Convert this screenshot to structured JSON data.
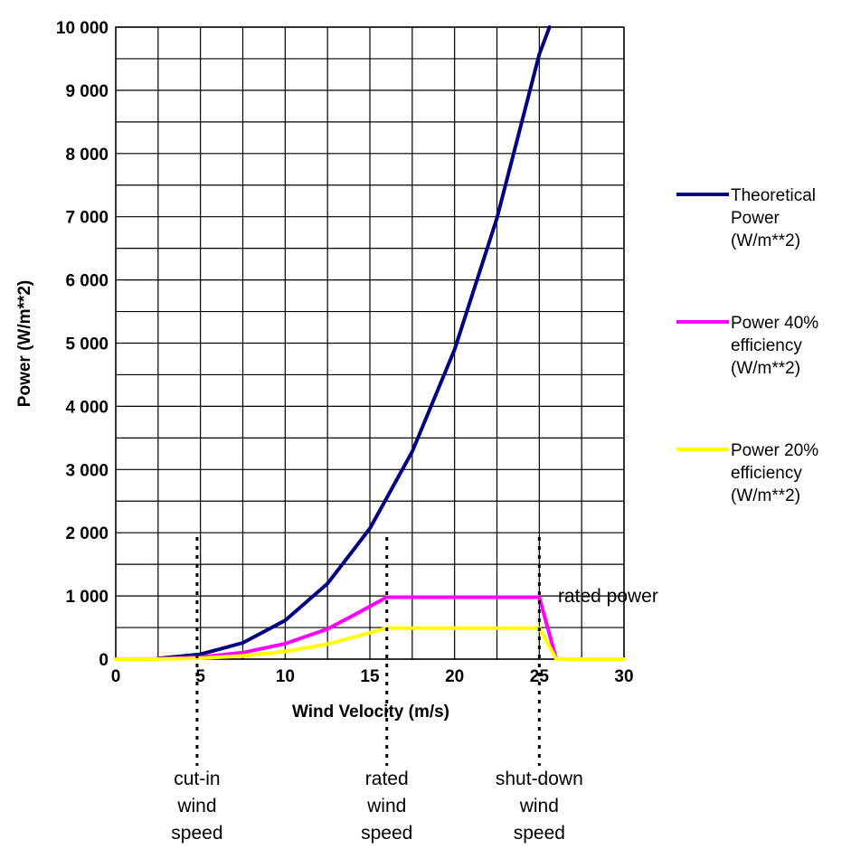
{
  "chart_data": {
    "type": "line",
    "xlabel": "Wind Velocity (m/s)",
    "ylabel": "Power (W/m**2)",
    "xlim": [
      0,
      30
    ],
    "ylim": [
      0,
      10000
    ],
    "x_ticks": [
      "0",
      "5",
      "10",
      "15",
      "20",
      "25",
      "30"
    ],
    "y_ticks": [
      "0",
      "1 000",
      "2 000",
      "3 000",
      "4 000",
      "5 000",
      "6 000",
      "7 000",
      "8 000",
      "9 000",
      "10 000"
    ],
    "grid": true,
    "legend_position": "right",
    "series": [
      {
        "name": "Theoretical Power (W/m**2)",
        "name_lines": [
          "Theoretical",
          "Power",
          "(W/m**2)"
        ],
        "color": "#000080",
        "x": [
          2.5,
          5,
          7.5,
          10,
          12.5,
          15,
          17.5,
          20,
          22.5,
          25,
          25.6
        ],
        "y": [
          10,
          77,
          258,
          612,
          1196,
          2067,
          3283,
          4900,
          6977,
          9570,
          10000
        ]
      },
      {
        "name": "Power 40% efficiency (W/m**2)",
        "name_lines": [
          "Power 40%",
          "efficiency",
          "(W/m**2)"
        ],
        "color": "#ff00ff",
        "x": [
          0,
          2.5,
          5,
          7.5,
          10,
          12.5,
          14,
          16,
          17.5,
          20,
          22.5,
          25,
          26,
          27.5,
          30
        ],
        "y": [
          0,
          4,
          31,
          103,
          245,
          478,
          690,
          980,
          980,
          980,
          980,
          980,
          0,
          0,
          0
        ]
      },
      {
        "name": "Power 20% efficiency (W/m**2)",
        "name_lines": [
          "Power 20%",
          "efficiency",
          "(W/m**2)"
        ],
        "color": "#ffff00",
        "x": [
          0,
          2.5,
          5,
          7.5,
          10,
          12.5,
          14,
          16,
          17.5,
          20,
          22.5,
          25,
          26,
          27.5,
          30
        ],
        "y": [
          0,
          2,
          15,
          52,
          122,
          239,
          345,
          490,
          490,
          490,
          490,
          490,
          0,
          0,
          0
        ]
      }
    ],
    "markers": [
      {
        "x": 4.8,
        "label_lines": [
          "cut-in",
          "wind",
          "speed"
        ]
      },
      {
        "x": 16,
        "label_lines": [
          "rated",
          "wind",
          "speed"
        ]
      },
      {
        "x": 25,
        "label_lines": [
          "shut-down",
          "wind",
          "speed"
        ]
      }
    ],
    "annotations": [
      {
        "text": "rated power",
        "x": 26.1,
        "y": 1000
      }
    ]
  }
}
